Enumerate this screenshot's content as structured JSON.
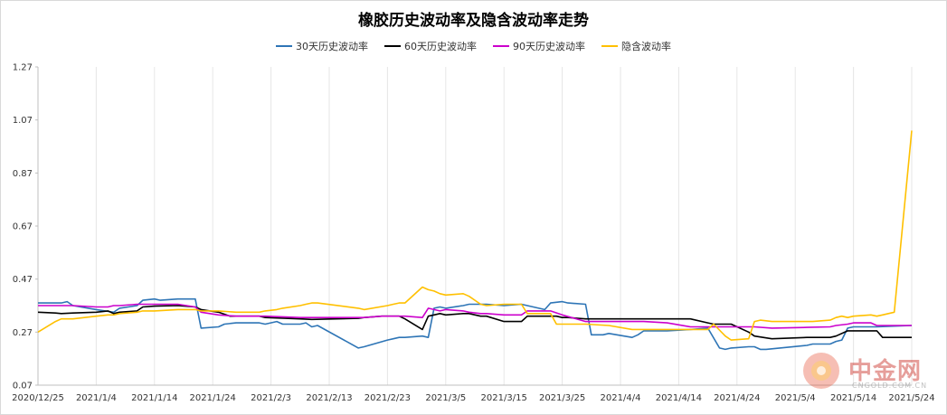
{
  "title": "橡胶历史波动率及隐含波动率走势",
  "legend": [
    {
      "name": "30天历史波动率",
      "color": "#2e75b6"
    },
    {
      "name": "60天历史波动率",
      "color": "#000000"
    },
    {
      "name": "90天历史波动率",
      "color": "#cc00cc"
    },
    {
      "name": "隐含波动率",
      "color": "#ffc000"
    }
  ],
  "watermark": {
    "text": "中金网",
    "sub": "CNGOLD.COM.CN"
  },
  "chart_data": {
    "type": "line",
    "title": "橡胶历史波动率及隐含波动率走势",
    "xlabel": "",
    "ylabel": "",
    "ylim": [
      0.07,
      1.27
    ],
    "yticks": [
      "0.07",
      "0.27",
      "0.47",
      "0.67",
      "0.87",
      "1.07",
      "1.27"
    ],
    "xticks": [
      "2020/12/25",
      "2021/1/4",
      "2021/1/14",
      "2021/1/24",
      "2021/2/3",
      "2021/2/13",
      "2021/2/23",
      "2021/3/5",
      "2021/3/15",
      "2021/3/25",
      "2021/4/4",
      "2021/4/14",
      "2021/4/24",
      "2021/5/4",
      "2021/5/14",
      "2021/5/24"
    ],
    "grid": "vertical",
    "legend_position": "top",
    "x_start": "2020-12-25",
    "x_end": "2021-05-24",
    "series": [
      {
        "name": "30天历史波动率",
        "color": "#2e75b6",
        "points": [
          [
            "2020-12-25",
            0.38
          ],
          [
            "2020-12-29",
            0.38
          ],
          [
            "2020-12-30",
            0.385
          ],
          [
            "2020-12-31",
            0.37
          ],
          [
            "2021-01-04",
            0.355
          ],
          [
            "2021-01-07",
            0.345
          ],
          [
            "2021-01-08",
            0.36
          ],
          [
            "2021-01-11",
            0.37
          ],
          [
            "2021-01-12",
            0.39
          ],
          [
            "2021-01-14",
            0.395
          ],
          [
            "2021-01-15",
            0.39
          ],
          [
            "2021-01-18",
            0.395
          ],
          [
            "2021-01-21",
            0.395
          ],
          [
            "2021-01-22",
            0.285
          ],
          [
            "2021-01-25",
            0.29
          ],
          [
            "2021-01-26",
            0.3
          ],
          [
            "2021-01-28",
            0.305
          ],
          [
            "2021-02-01",
            0.305
          ],
          [
            "2021-02-02",
            0.3
          ],
          [
            "2021-02-04",
            0.31
          ],
          [
            "2021-02-05",
            0.3
          ],
          [
            "2021-02-08",
            0.3
          ],
          [
            "2021-02-09",
            0.305
          ],
          [
            "2021-02-10",
            0.29
          ],
          [
            "2021-02-11",
            0.295
          ],
          [
            "2021-02-18",
            0.21
          ],
          [
            "2021-02-19",
            0.215
          ],
          [
            "2021-02-23",
            0.24
          ],
          [
            "2021-02-24",
            0.245
          ],
          [
            "2021-02-25",
            0.25
          ],
          [
            "2021-02-26",
            0.25
          ],
          [
            "2021-03-01",
            0.255
          ],
          [
            "2021-03-02",
            0.25
          ],
          [
            "2021-03-03",
            0.36
          ],
          [
            "2021-03-04",
            0.365
          ],
          [
            "2021-03-05",
            0.36
          ],
          [
            "2021-03-08",
            0.37
          ],
          [
            "2021-03-09",
            0.375
          ],
          [
            "2021-03-12",
            0.375
          ],
          [
            "2021-03-15",
            0.37
          ],
          [
            "2021-03-18",
            0.375
          ],
          [
            "2021-03-19",
            0.37
          ],
          [
            "2021-03-22",
            0.355
          ],
          [
            "2021-03-23",
            0.38
          ],
          [
            "2021-03-25",
            0.385
          ],
          [
            "2021-03-26",
            0.38
          ],
          [
            "2021-03-29",
            0.375
          ],
          [
            "2021-03-30",
            0.26
          ],
          [
            "2021-04-01",
            0.26
          ],
          [
            "2021-04-02",
            0.265
          ],
          [
            "2021-04-06",
            0.25
          ],
          [
            "2021-04-07",
            0.26
          ],
          [
            "2021-04-08",
            0.275
          ],
          [
            "2021-04-12",
            0.275
          ],
          [
            "2021-04-16",
            0.28
          ],
          [
            "2021-04-19",
            0.285
          ],
          [
            "2021-04-21",
            0.21
          ],
          [
            "2021-04-22",
            0.205
          ],
          [
            "2021-04-23",
            0.21
          ],
          [
            "2021-04-26",
            0.215
          ],
          [
            "2021-04-27",
            0.215
          ],
          [
            "2021-04-28",
            0.205
          ],
          [
            "2021-04-29",
            0.205
          ],
          [
            "2021-05-06",
            0.22
          ],
          [
            "2021-05-07",
            0.225
          ],
          [
            "2021-05-10",
            0.225
          ],
          [
            "2021-05-11",
            0.235
          ],
          [
            "2021-05-12",
            0.24
          ],
          [
            "2021-05-13",
            0.285
          ],
          [
            "2021-05-14",
            0.29
          ],
          [
            "2021-05-18",
            0.29
          ],
          [
            "2021-05-24",
            0.295
          ]
        ]
      },
      {
        "name": "60天历史波动率",
        "color": "#000000",
        "points": [
          [
            "2020-12-25",
            0.345
          ],
          [
            "2020-12-28",
            0.342
          ],
          [
            "2020-12-29",
            0.34
          ],
          [
            "2020-12-31",
            0.342
          ],
          [
            "2021-01-04",
            0.345
          ],
          [
            "2021-01-06",
            0.35
          ],
          [
            "2021-01-07",
            0.34
          ],
          [
            "2021-01-08",
            0.345
          ],
          [
            "2021-01-11",
            0.35
          ],
          [
            "2021-01-12",
            0.365
          ],
          [
            "2021-01-14",
            0.368
          ],
          [
            "2021-01-18",
            0.37
          ],
          [
            "2021-01-21",
            0.365
          ],
          [
            "2021-01-22",
            0.355
          ],
          [
            "2021-01-25",
            0.345
          ],
          [
            "2021-01-27",
            0.33
          ],
          [
            "2021-01-28",
            0.33
          ],
          [
            "2021-02-01",
            0.33
          ],
          [
            "2021-02-02",
            0.325
          ],
          [
            "2021-02-08",
            0.32
          ],
          [
            "2021-02-10",
            0.318
          ],
          [
            "2021-02-18",
            0.322
          ],
          [
            "2021-02-19",
            0.325
          ],
          [
            "2021-02-22",
            0.33
          ],
          [
            "2021-02-25",
            0.33
          ],
          [
            "2021-02-26",
            0.32
          ],
          [
            "2021-03-01",
            0.28
          ],
          [
            "2021-03-02",
            0.33
          ],
          [
            "2021-03-03",
            0.335
          ],
          [
            "2021-03-04",
            0.34
          ],
          [
            "2021-03-05",
            0.335
          ],
          [
            "2021-03-08",
            0.34
          ],
          [
            "2021-03-09",
            0.34
          ],
          [
            "2021-03-11",
            0.33
          ],
          [
            "2021-03-12",
            0.33
          ],
          [
            "2021-03-15",
            0.31
          ],
          [
            "2021-03-18",
            0.31
          ],
          [
            "2021-03-19",
            0.33
          ],
          [
            "2021-03-23",
            0.33
          ],
          [
            "2021-03-24",
            0.33
          ],
          [
            "2021-03-25",
            0.325
          ],
          [
            "2021-03-26",
            0.325
          ],
          [
            "2021-03-29",
            0.32
          ],
          [
            "2021-04-02",
            0.32
          ],
          [
            "2021-04-08",
            0.32
          ],
          [
            "2021-04-12",
            0.32
          ],
          [
            "2021-04-16",
            0.32
          ],
          [
            "2021-04-19",
            0.305
          ],
          [
            "2021-04-20",
            0.3
          ],
          [
            "2021-04-22",
            0.3
          ],
          [
            "2021-04-23",
            0.3
          ],
          [
            "2021-04-26",
            0.27
          ],
          [
            "2021-04-27",
            0.255
          ],
          [
            "2021-04-30",
            0.245
          ],
          [
            "2021-05-06",
            0.25
          ],
          [
            "2021-05-07",
            0.25
          ],
          [
            "2021-05-10",
            0.25
          ],
          [
            "2021-05-11",
            0.255
          ],
          [
            "2021-05-13",
            0.275
          ],
          [
            "2021-05-14",
            0.275
          ],
          [
            "2021-05-18",
            0.275
          ],
          [
            "2021-05-19",
            0.25
          ],
          [
            "2021-05-24",
            0.25
          ]
        ]
      },
      {
        "name": "90天历史波动率",
        "color": "#cc00cc",
        "points": [
          [
            "2020-12-25",
            0.37
          ],
          [
            "2020-12-29",
            0.37
          ],
          [
            "2020-12-31",
            0.37
          ],
          [
            "2021-01-04",
            0.365
          ],
          [
            "2021-01-06",
            0.365
          ],
          [
            "2021-01-07",
            0.37
          ],
          [
            "2021-01-08",
            0.37
          ],
          [
            "2021-01-11",
            0.375
          ],
          [
            "2021-01-12",
            0.375
          ],
          [
            "2021-01-14",
            0.375
          ],
          [
            "2021-01-18",
            0.375
          ],
          [
            "2021-01-21",
            0.365
          ],
          [
            "2021-01-22",
            0.345
          ],
          [
            "2021-01-25",
            0.335
          ],
          [
            "2021-01-28",
            0.33
          ],
          [
            "2021-02-01",
            0.33
          ],
          [
            "2021-02-02",
            0.33
          ],
          [
            "2021-02-08",
            0.325
          ],
          [
            "2021-02-10",
            0.325
          ],
          [
            "2021-02-18",
            0.325
          ],
          [
            "2021-02-19",
            0.325
          ],
          [
            "2021-02-22",
            0.33
          ],
          [
            "2021-02-26",
            0.33
          ],
          [
            "2021-03-01",
            0.325
          ],
          [
            "2021-03-02",
            0.36
          ],
          [
            "2021-03-03",
            0.355
          ],
          [
            "2021-03-04",
            0.35
          ],
          [
            "2021-03-05",
            0.355
          ],
          [
            "2021-03-08",
            0.35
          ],
          [
            "2021-03-09",
            0.345
          ],
          [
            "2021-03-11",
            0.34
          ],
          [
            "2021-03-12",
            0.34
          ],
          [
            "2021-03-15",
            0.335
          ],
          [
            "2021-03-18",
            0.335
          ],
          [
            "2021-03-19",
            0.35
          ],
          [
            "2021-03-23",
            0.35
          ],
          [
            "2021-03-25",
            0.335
          ],
          [
            "2021-03-29",
            0.31
          ],
          [
            "2021-04-02",
            0.31
          ],
          [
            "2021-04-05",
            0.31
          ],
          [
            "2021-04-08",
            0.31
          ],
          [
            "2021-04-12",
            0.305
          ],
          [
            "2021-04-16",
            0.29
          ],
          [
            "2021-04-19",
            0.29
          ],
          [
            "2021-04-22",
            0.29
          ],
          [
            "2021-04-23",
            0.29
          ],
          [
            "2021-04-26",
            0.29
          ],
          [
            "2021-04-27",
            0.29
          ],
          [
            "2021-04-30",
            0.285
          ],
          [
            "2021-05-06",
            0.288
          ],
          [
            "2021-05-10",
            0.29
          ],
          [
            "2021-05-11",
            0.295
          ],
          [
            "2021-05-13",
            0.3
          ],
          [
            "2021-05-14",
            0.305
          ],
          [
            "2021-05-17",
            0.305
          ],
          [
            "2021-05-18",
            0.295
          ],
          [
            "2021-05-24",
            0.295
          ]
        ]
      },
      {
        "name": "隐含波动率",
        "color": "#ffc000",
        "points": [
          [
            "2020-12-25",
            0.27
          ],
          [
            "2020-12-28",
            0.31
          ],
          [
            "2020-12-29",
            0.32
          ],
          [
            "2020-12-31",
            0.32
          ],
          [
            "2021-01-04",
            0.33
          ],
          [
            "2021-01-06",
            0.335
          ],
          [
            "2021-01-07",
            0.335
          ],
          [
            "2021-01-08",
            0.34
          ],
          [
            "2021-01-11",
            0.345
          ],
          [
            "2021-01-12",
            0.35
          ],
          [
            "2021-01-14",
            0.35
          ],
          [
            "2021-01-18",
            0.355
          ],
          [
            "2021-01-21",
            0.355
          ],
          [
            "2021-01-22",
            0.35
          ],
          [
            "2021-01-25",
            0.35
          ],
          [
            "2021-01-28",
            0.345
          ],
          [
            "2021-02-01",
            0.345
          ],
          [
            "2021-02-02",
            0.35
          ],
          [
            "2021-02-04",
            0.355
          ],
          [
            "2021-02-05",
            0.36
          ],
          [
            "2021-02-08",
            0.37
          ],
          [
            "2021-02-09",
            0.375
          ],
          [
            "2021-02-10",
            0.38
          ],
          [
            "2021-02-11",
            0.38
          ],
          [
            "2021-02-18",
            0.36
          ],
          [
            "2021-02-19",
            0.355
          ],
          [
            "2021-02-23",
            0.37
          ],
          [
            "2021-02-24",
            0.375
          ],
          [
            "2021-02-25",
            0.38
          ],
          [
            "2021-02-26",
            0.38
          ],
          [
            "2021-03-01",
            0.44
          ],
          [
            "2021-03-02",
            0.43
          ],
          [
            "2021-03-03",
            0.425
          ],
          [
            "2021-03-04",
            0.415
          ],
          [
            "2021-03-05",
            0.41
          ],
          [
            "2021-03-08",
            0.415
          ],
          [
            "2021-03-09",
            0.405
          ],
          [
            "2021-03-11",
            0.375
          ],
          [
            "2021-03-12",
            0.37
          ],
          [
            "2021-03-15",
            0.375
          ],
          [
            "2021-03-18",
            0.375
          ],
          [
            "2021-03-19",
            0.34
          ],
          [
            "2021-03-23",
            0.34
          ],
          [
            "2021-03-24",
            0.3
          ],
          [
            "2021-03-25",
            0.3
          ],
          [
            "2021-03-29",
            0.3
          ],
          [
            "2021-04-02",
            0.295
          ],
          [
            "2021-04-06",
            0.28
          ],
          [
            "2021-04-07",
            0.28
          ],
          [
            "2021-04-08",
            0.28
          ],
          [
            "2021-04-12",
            0.28
          ],
          [
            "2021-04-16",
            0.28
          ],
          [
            "2021-04-19",
            0.28
          ],
          [
            "2021-04-20",
            0.3
          ],
          [
            "2021-04-22",
            0.255
          ],
          [
            "2021-04-23",
            0.24
          ],
          [
            "2021-04-26",
            0.245
          ],
          [
            "2021-04-27",
            0.31
          ],
          [
            "2021-04-28",
            0.315
          ],
          [
            "2021-04-30",
            0.31
          ],
          [
            "2021-05-06",
            0.31
          ],
          [
            "2021-05-07",
            0.31
          ],
          [
            "2021-05-10",
            0.315
          ],
          [
            "2021-05-11",
            0.325
          ],
          [
            "2021-05-12",
            0.33
          ],
          [
            "2021-05-13",
            0.325
          ],
          [
            "2021-05-14",
            0.33
          ],
          [
            "2021-05-17",
            0.335
          ],
          [
            "2021-05-18",
            0.33
          ],
          [
            "2021-05-19",
            0.335
          ],
          [
            "2021-05-21",
            0.345
          ],
          [
            "2021-05-24",
            1.03
          ]
        ]
      }
    ]
  }
}
